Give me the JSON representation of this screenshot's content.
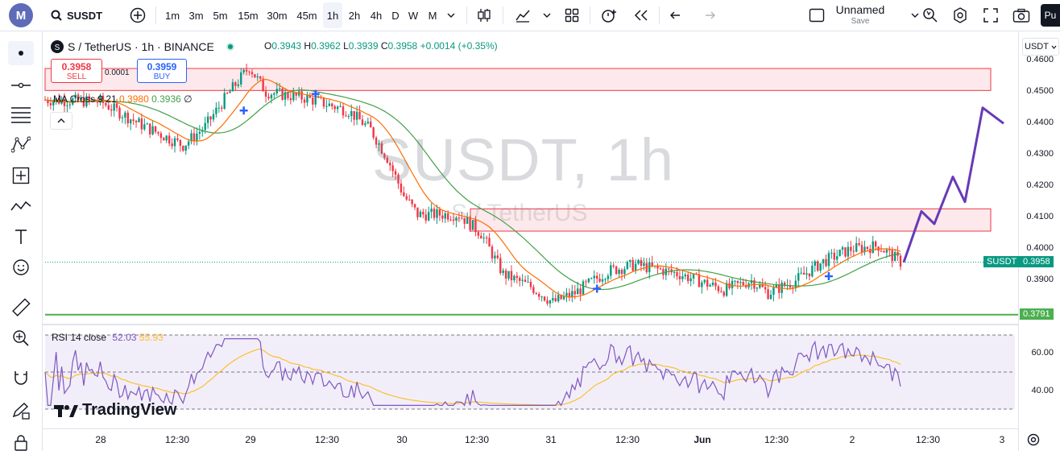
{
  "topbar": {
    "symbol": "SUSDT",
    "timeframes": [
      "1m",
      "3m",
      "5m",
      "15m",
      "30m",
      "45m",
      "1h",
      "2h",
      "4h",
      "D",
      "W",
      "M"
    ],
    "active_timeframe": "1h",
    "layout_name": "Unnamed",
    "save_label": "Save",
    "publish_label": "Pu"
  },
  "legend": {
    "title": "S / TetherUS · 1h · BINANCE",
    "o_label": "O",
    "o": "0.3943",
    "h_label": "H",
    "h": "0.3962",
    "l_label": "L",
    "l": "0.3939",
    "c_label": "C",
    "c": "0.3958",
    "change": "+0.0014 (+0.35%)"
  },
  "trade": {
    "sell_price": "0.3958",
    "sell_label": "SELL",
    "spread": "0.0001",
    "buy_price": "0.3959",
    "buy_label": "BUY"
  },
  "ma_indicator": {
    "name": "MA Cross 9 21",
    "v1": "0.3980",
    "v2": "0.3936",
    "extra": "∅"
  },
  "rsi_indicator": {
    "name": "RSI 14 close",
    "v1": "52.03",
    "v2": "55.93"
  },
  "watermark": {
    "main": "SUSDT, 1h",
    "sub": "S / TetherUS"
  },
  "price_scale": {
    "currency": "USDT",
    "ticks": [
      "0.4600",
      "0.4500",
      "0.4400",
      "0.4300",
      "0.4200",
      "0.4100",
      "0.4000",
      "0.3900"
    ],
    "current_tag": "SUSDT",
    "current_value": "0.3958",
    "line_value": "0.3791"
  },
  "rsi_scale": {
    "ticks": [
      "60.00",
      "40.00"
    ]
  },
  "time_axis": {
    "labels": [
      "28",
      "12:30",
      "29",
      "12:30",
      "30",
      "12:30",
      "31",
      "12:30",
      "Jun",
      "12:30",
      "2",
      "12:30",
      "3"
    ]
  },
  "branding": {
    "text": "TradingView"
  },
  "colors": {
    "up": "#089981",
    "down": "#f23645",
    "ma_fast": "#ff6d00",
    "ma_slow": "#43a047",
    "rsi": "#7e57c2",
    "rsi_ma": "#fbc02d",
    "zone_fill": "#fde4e6",
    "zone_border": "#f23645",
    "support": "#4caf50",
    "projection": "#673ab7",
    "cross_marker": "#2962ff"
  },
  "chart_data": {
    "type": "candlestick",
    "symbol": "SUSDT",
    "interval": "1h",
    "ylim": [
      0.378,
      0.467
    ],
    "zones": [
      {
        "low": 0.4505,
        "high": 0.4575
      },
      {
        "low": 0.4057,
        "high": 0.4128
      }
    ],
    "support_line": 0.3791,
    "current_price": 0.3958,
    "rsi_ylim": [
      30,
      70
    ],
    "rsi_levels": [
      70,
      50,
      30
    ],
    "rsi_last": 52.03,
    "rsi_ma_last": 55.93,
    "projection_path": [
      [
        0.3958
      ],
      [
        0.412
      ],
      [
        0.408
      ],
      [
        0.423
      ],
      [
        0.415
      ],
      [
        0.445
      ],
      [
        0.44
      ]
    ]
  }
}
